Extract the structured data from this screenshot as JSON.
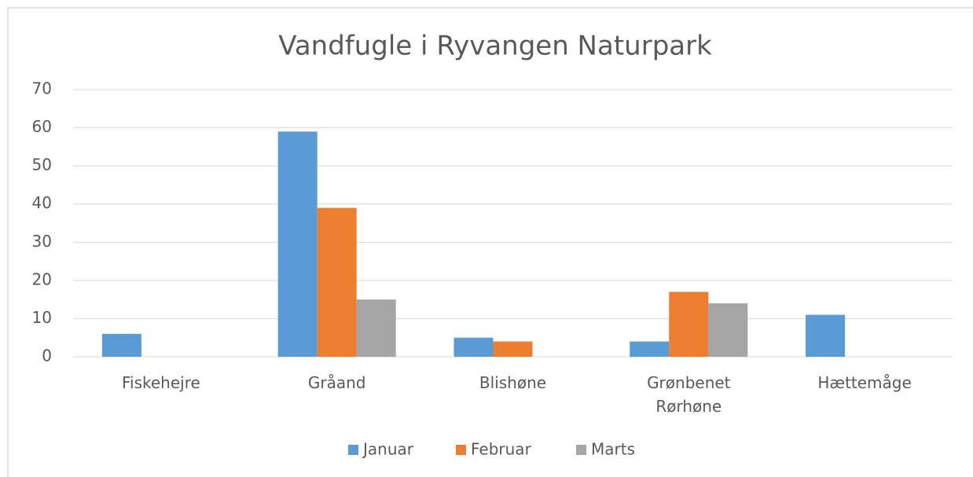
{
  "chart_data": {
    "type": "bar",
    "title": "Vandfugle i Ryvangen Naturpark",
    "categories": [
      "Fiskehejre",
      "Gråand",
      "Blishøne",
      "Grønbenet Rørhøne",
      "Hættemåge"
    ],
    "series": [
      {
        "name": "Januar",
        "color": "#5b9bd5",
        "values": [
          6,
          59,
          5,
          4,
          11
        ]
      },
      {
        "name": "Februar",
        "color": "#ed7d31",
        "values": [
          0,
          39,
          4,
          17,
          0
        ]
      },
      {
        "name": "Marts",
        "color": "#a5a5a5",
        "values": [
          0,
          15,
          0,
          14,
          0
        ]
      }
    ],
    "ylim": [
      0,
      70
    ],
    "yticks": [
      0,
      10,
      20,
      30,
      40,
      50,
      60,
      70
    ],
    "grid": true,
    "legend": "bottom"
  }
}
